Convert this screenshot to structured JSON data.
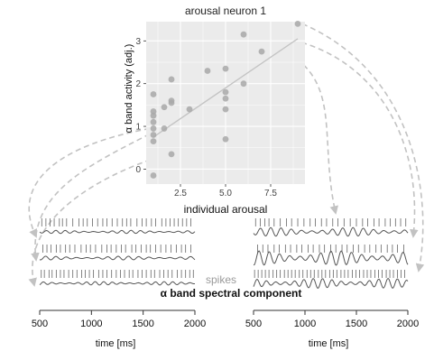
{
  "chart_data": {
    "type": "scatter",
    "title": "arousal neuron 1",
    "xlabel": "individual arousal",
    "ylabel": "α band activity (adj.)",
    "xlim": [
      0.6,
      9.4
    ],
    "ylim": [
      -0.35,
      3.45
    ],
    "xticks": [
      2.5,
      5.0,
      7.5
    ],
    "yticks": [
      0,
      1,
      2,
      3
    ],
    "grid": true,
    "points": [
      {
        "x": 1,
        "y": -0.15
      },
      {
        "x": 1,
        "y": 0.65
      },
      {
        "x": 1,
        "y": 0.8
      },
      {
        "x": 1,
        "y": 0.95
      },
      {
        "x": 1,
        "y": 1.1
      },
      {
        "x": 1,
        "y": 1.25
      },
      {
        "x": 1,
        "y": 1.35
      },
      {
        "x": 1,
        "y": 1.75
      },
      {
        "x": 1.6,
        "y": 0.95
      },
      {
        "x": 1.6,
        "y": 1.45
      },
      {
        "x": 2,
        "y": 0.35
      },
      {
        "x": 2,
        "y": 1.55
      },
      {
        "x": 2,
        "y": 1.6
      },
      {
        "x": 2,
        "y": 2.1
      },
      {
        "x": 3,
        "y": 1.4
      },
      {
        "x": 4,
        "y": 2.3
      },
      {
        "x": 5,
        "y": 0.7
      },
      {
        "x": 5,
        "y": 1.4
      },
      {
        "x": 5,
        "y": 1.65
      },
      {
        "x": 5,
        "y": 1.8
      },
      {
        "x": 5,
        "y": 2.35
      },
      {
        "x": 6,
        "y": 2.0
      },
      {
        "x": 6,
        "y": 3.15
      },
      {
        "x": 7,
        "y": 2.75
      },
      {
        "x": 9,
        "y": 3.4
      }
    ],
    "fit_line": {
      "x": [
        1,
        9
      ],
      "y": [
        0.75,
        3.05
      ]
    },
    "highlight_low": {
      "x": 1,
      "y": 0.95
    },
    "highlight_high": {
      "x": 6,
      "y": 3.15
    }
  },
  "traces": {
    "spikes_label": "spikes",
    "component_label": "α band spectral component",
    "xlabel": "time [ms]",
    "xticks": [
      500,
      1000,
      1500,
      2000
    ],
    "xlim": [
      500,
      2000
    ],
    "left_rows": [
      {
        "spikes": [
          520,
          560,
          600,
          640,
          690,
          720,
          760,
          820,
          880,
          920,
          960,
          1010,
          1060,
          1110,
          1150,
          1200,
          1250,
          1300,
          1340,
          1380,
          1440,
          1490,
          1530,
          1580,
          1620,
          1680,
          1720,
          1760,
          1800,
          1840,
          1880,
          1920,
          1960
        ],
        "wave_amp": 1.1,
        "wave_freq": 11,
        "wave_phase": 0.2
      },
      {
        "spikes": [
          530,
          570,
          610,
          660,
          700,
          750,
          790,
          840,
          900,
          950,
          990,
          1040,
          1100,
          1150,
          1190,
          1240,
          1290,
          1330,
          1390,
          1430,
          1480,
          1530,
          1570,
          1620,
          1670,
          1720,
          1770,
          1820,
          1870,
          1910,
          1960
        ],
        "wave_amp": 1.3,
        "wave_freq": 10,
        "wave_phase": 1.1
      },
      {
        "spikes": [
          515,
          545,
          590,
          620,
          660,
          700,
          735,
          780,
          820,
          860,
          905,
          940,
          980,
          1020,
          1070,
          1110,
          1150,
          1195,
          1240,
          1280,
          1320,
          1365,
          1400,
          1450,
          1490,
          1530,
          1575,
          1610,
          1660,
          1700,
          1740,
          1780,
          1830,
          1870,
          1910,
          1950,
          1985
        ],
        "wave_amp": 1.2,
        "wave_freq": 12,
        "wave_phase": 2.0
      }
    ],
    "right_rows": [
      {
        "spikes": [
          520,
          565,
          610,
          650,
          700,
          760,
          820,
          870,
          930,
          990,
          1050,
          1100,
          1160,
          1210,
          1270,
          1320,
          1380,
          1440,
          1500,
          1560,
          1610,
          1670,
          1720,
          1780,
          1830,
          1880,
          1930,
          1980
        ],
        "wave_amp": 3.0,
        "wave_freq": 10,
        "wave_phase": 0.5
      },
      {
        "spikes": [
          540,
          590,
          640,
          700,
          750,
          810,
          860,
          920,
          970,
          1030,
          1080,
          1140,
          1190,
          1250,
          1300,
          1360,
          1410,
          1470,
          1520,
          1580,
          1630,
          1690,
          1740,
          1800,
          1850,
          1900,
          1960
        ],
        "wave_amp": 5.0,
        "wave_freq": 10,
        "wave_phase": 1.4
      },
      {
        "spikes": [
          510,
          545,
          580,
          615,
          650,
          690,
          725,
          760,
          800,
          835,
          870,
          905,
          945,
          980,
          1020,
          1055,
          1090,
          1130,
          1165,
          1200,
          1240,
          1275,
          1310,
          1350,
          1385,
          1420,
          1460,
          1495,
          1530,
          1570,
          1605,
          1640,
          1680,
          1715,
          1750,
          1790,
          1825,
          1860,
          1900,
          1935,
          1970
        ],
        "wave_amp": 3.4,
        "wave_freq": 11,
        "wave_phase": 2.3
      }
    ]
  },
  "colors": {
    "panel_bg": "#ebebeb",
    "grid": "#ffffff",
    "point": "#a8a8a8",
    "fit": "#c4c4c4",
    "arrow": "#c2c2c2",
    "trace": "#555555",
    "spike": "#666666",
    "axis": "#333333",
    "muted_label": "#9a9a9a"
  }
}
